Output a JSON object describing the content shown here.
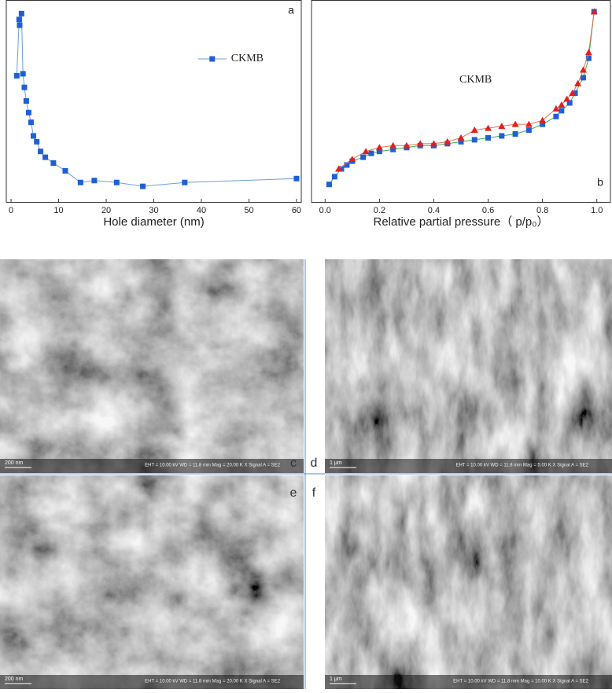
{
  "chart_data": [
    {
      "type": "line",
      "panel_label": "a",
      "x_label": "Hole diameter (nm)",
      "annotation": "CKMB",
      "xlim": [
        -1,
        61
      ],
      "xticks": [
        0,
        10,
        20,
        30,
        40,
        50,
        60
      ],
      "ylim": [
        0,
        100
      ],
      "grid": false,
      "legend": "upper right",
      "series": [
        {
          "name": "CKMB",
          "color": "#1f5fd6",
          "line_color": "#6aa0d8",
          "marker": "square",
          "x": [
            1.2,
            1.7,
            1.8,
            2.2,
            2.5,
            2.8,
            3.2,
            3.7,
            4.2,
            4.7,
            5.4,
            6.2,
            7.2,
            8.9,
            11.4,
            14.6,
            17.5,
            22.2,
            27.7,
            36.5,
            60
          ],
          "values": [
            63,
            92,
            89,
            95,
            64,
            57,
            50,
            44,
            39,
            32,
            29,
            24,
            21,
            18,
            14,
            8,
            9,
            8,
            6,
            8,
            10
          ]
        }
      ]
    },
    {
      "type": "line",
      "panel_label": "b",
      "x_label": "Relative partial pressure（ p/p₀）",
      "annotation": "CKMB",
      "xlim": [
        -0.05,
        1.05
      ],
      "xticks": [
        {
          "value": 0,
          "label": "0.0"
        },
        0.2,
        0.4,
        0.6,
        0.8,
        {
          "value": 1,
          "label": "1.0"
        }
      ],
      "ylim": [
        0,
        100
      ],
      "grid": false,
      "series": [
        {
          "color": "#1f5fd6",
          "line_color": "#3bb04a",
          "marker": "square",
          "x": [
            0.015,
            0.035,
            0.06,
            0.08,
            0.1,
            0.14,
            0.17,
            0.2,
            0.25,
            0.3,
            0.35,
            0.4,
            0.45,
            0.5,
            0.55,
            0.6,
            0.65,
            0.7,
            0.75,
            0.8,
            0.85,
            0.87,
            0.9,
            0.92,
            0.95,
            0.97,
            0.99
          ],
          "values": [
            7,
            11,
            15,
            17,
            19,
            21,
            23,
            24,
            25,
            26,
            27,
            27,
            28,
            29,
            30,
            31,
            32,
            33,
            35,
            38,
            42,
            45,
            49,
            54,
            62,
            72,
            96
          ]
        },
        {
          "color": "#e02020",
          "line_color": "#e07050",
          "marker": "triangle",
          "x": [
            0.05,
            0.1,
            0.15,
            0.2,
            0.25,
            0.3,
            0.35,
            0.4,
            0.45,
            0.5,
            0.55,
            0.6,
            0.65,
            0.7,
            0.75,
            0.8,
            0.85,
            0.87,
            0.89,
            0.91,
            0.93,
            0.95,
            0.97,
            0.99
          ],
          "values": [
            15,
            20,
            24,
            26,
            27,
            27,
            28,
            28,
            29,
            31,
            35,
            36,
            37,
            38,
            38,
            40,
            46,
            48,
            51,
            54,
            59,
            66,
            75,
            96
          ]
        }
      ]
    }
  ],
  "images": [
    {
      "label": "c",
      "scale": "200 nm",
      "info": "EHT = 10.00 kV    WD = 11.8 mm    Mag = 20.00 K X   Signal A = SE2"
    },
    {
      "label": "d",
      "scale": "1 μm",
      "info": "EHT = 10.00 kV    WD = 11.8 mm    Mag = 5.00 K X   Signal A = SE2"
    },
    {
      "label": "e",
      "scale": "200 nm",
      "info": "EHT = 10.00 kV    WD = 11.8 mm    Mag = 20.00 K X   Signal A = SE2"
    },
    {
      "label": "f",
      "scale": "1 μm",
      "info": "EHT = 10.00 kV    WD = 11.8 mm    Mag = 10.00 K X   Signal A = SE2"
    }
  ]
}
